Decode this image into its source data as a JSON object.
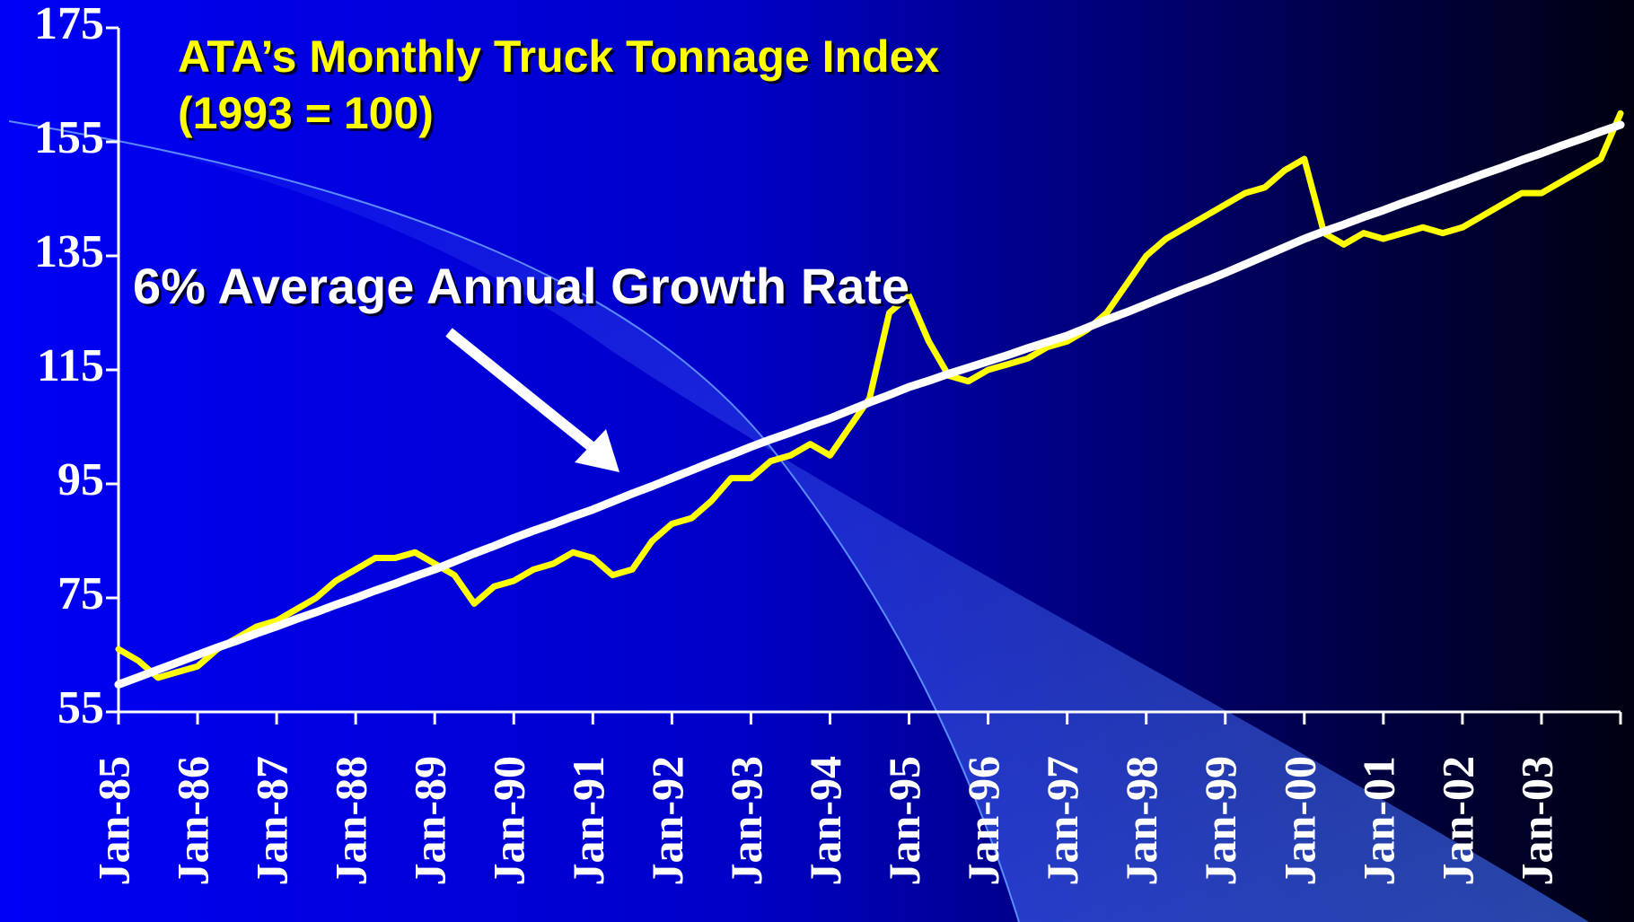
{
  "chart_data": {
    "type": "line",
    "title": "ATA’s Monthly Truck Tonnage Index",
    "subtitle": "(1993 = 100)",
    "annotation": "6% Average Annual Growth Rate",
    "categories": [
      "Jan-85",
      null,
      null,
      null,
      "Jan-86",
      null,
      null,
      null,
      "Jan-87",
      null,
      null,
      null,
      "Jan-88",
      null,
      null,
      null,
      "Jan-89",
      null,
      null,
      null,
      "Jan-90",
      null,
      null,
      null,
      "Jan-91",
      null,
      null,
      null,
      "Jan-92",
      null,
      null,
      null,
      "Jan-93",
      null,
      null,
      null,
      "Jan-94",
      null,
      null,
      null,
      "Jan-95",
      null,
      null,
      null,
      "Jan-96",
      null,
      null,
      null,
      "Jan-97",
      null,
      null,
      null,
      "Jan-98",
      null,
      null,
      null,
      "Jan-99",
      null,
      null,
      null,
      "Jan-00",
      null,
      null,
      null,
      "Jan-01",
      null,
      null,
      null,
      "Jan-02",
      null,
      null,
      null,
      "Jan-03",
      null,
      null,
      null,
      null
    ],
    "series": [
      {
        "color": "#ffff00",
        "values": [
          66,
          64,
          61,
          62,
          63,
          66,
          68,
          70,
          71,
          73,
          75,
          78,
          80,
          82,
          82,
          83,
          81,
          79,
          74,
          77,
          78,
          80,
          81,
          83,
          82,
          79,
          80,
          85,
          88,
          89,
          92,
          96,
          96,
          99,
          100,
          102,
          100,
          105,
          110,
          125,
          128,
          120,
          114,
          113,
          115,
          116,
          117,
          119,
          120,
          122,
          125,
          130,
          135,
          138,
          140,
          142,
          144,
          146,
          147,
          150,
          152,
          139,
          137,
          139,
          138,
          139,
          140,
          139,
          140,
          142,
          144,
          146,
          146,
          148,
          150,
          152,
          160
        ]
      },
      {
        "color": "#ffffff",
        "values": [
          59.8,
          61.1,
          62.4,
          63.7,
          65,
          66.3,
          67.5,
          68.8,
          70,
          71.3,
          72.5,
          73.8,
          75,
          76.3,
          77.5,
          78.8,
          80,
          81.4,
          82.8,
          84.1,
          85.5,
          86.8,
          88,
          89.3,
          90.5,
          91.9,
          93.3,
          94.6,
          96,
          97.4,
          98.8,
          100.1,
          101.5,
          102.8,
          104,
          105.3,
          106.5,
          107.9,
          109.3,
          110.6,
          112,
          113.1,
          114.3,
          115.4,
          116.5,
          117.6,
          118.8,
          119.9,
          121,
          122.4,
          123.8,
          125.1,
          126.5,
          127.9,
          129.3,
          130.6,
          132,
          133.5,
          135,
          136.5,
          138,
          139.3,
          140.5,
          141.8,
          143,
          144.3,
          145.5,
          146.8,
          148,
          149.3,
          150.5,
          151.8,
          153,
          154.3,
          155.5,
          156.8,
          158
        ]
      }
    ],
    "ylim": [
      55,
      175
    ],
    "yticks": [
      55,
      75,
      95,
      115,
      135,
      155,
      175
    ]
  }
}
